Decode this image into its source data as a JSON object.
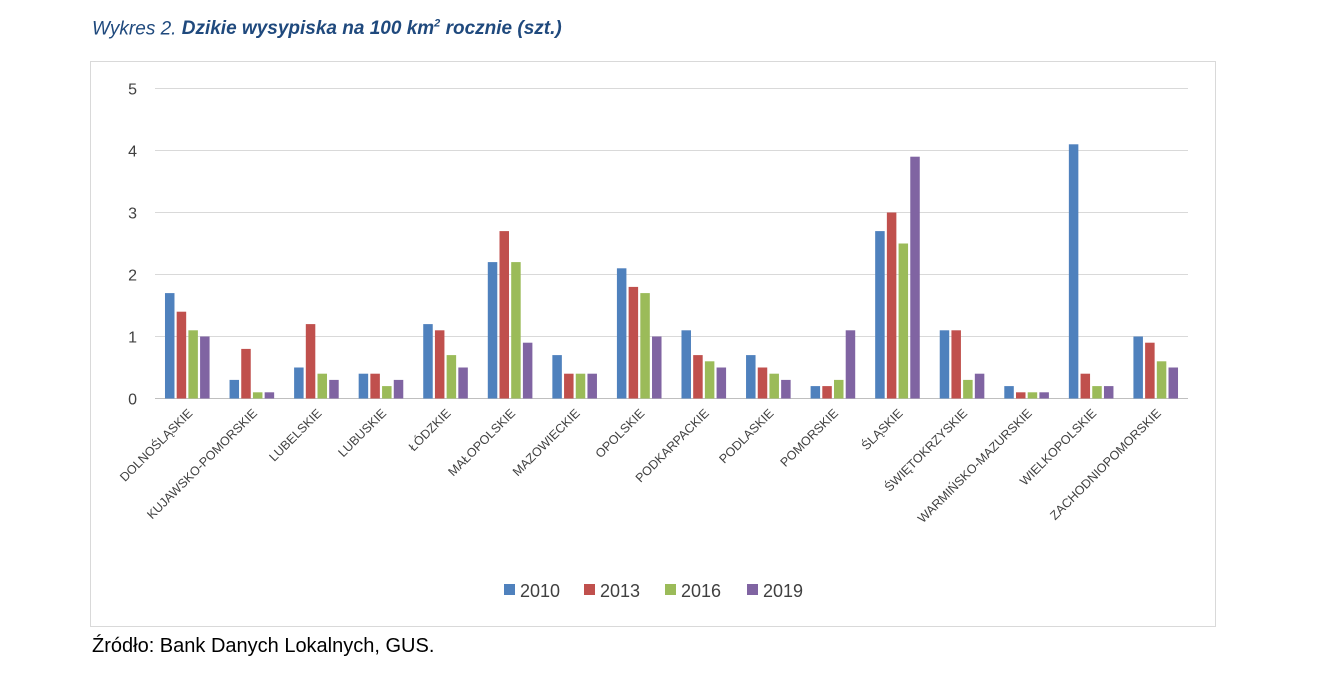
{
  "caption": {
    "prefix": "Wykres 2.",
    "title": "Dzikie wysypiska na 100 km",
    "superscript": "2",
    "suffix": " rocznie (szt.)"
  },
  "source": "Źródło: Bank Danych Lokalnych, GUS.",
  "chart_data": {
    "type": "bar",
    "title": "",
    "xlabel": "",
    "ylabel": "",
    "ylim": [
      0,
      5
    ],
    "yticks": [
      0,
      1,
      2,
      3,
      4,
      5
    ],
    "grid": true,
    "legend": "bottom",
    "categories": [
      "DOLNOŚLĄSKIE",
      "KUJAWSKO-POMORSKIE",
      "LUBELSKIE",
      "LUBUSKIE",
      "ŁÓDZKIE",
      "MAŁOPOLSKIE",
      "MAZOWIECKIE",
      "OPOLSKIE",
      "PODKARPACKIE",
      "PODLASKIE",
      "POMORSKIE",
      "ŚLĄSKIE",
      "ŚWIĘTOKRZYSKIE",
      "WARMIŃSKO-MAZURSKIE",
      "WIELKOPOLSKIE",
      "ZACHODNIOPOMORSKIE"
    ],
    "series": [
      {
        "name": "2010",
        "color": "#4f81bd",
        "values": [
          1.7,
          0.3,
          0.5,
          0.4,
          1.2,
          2.2,
          0.7,
          2.1,
          1.1,
          0.7,
          0.2,
          2.7,
          1.1,
          0.2,
          4.1,
          1.0
        ]
      },
      {
        "name": "2013",
        "color": "#c0504d",
        "values": [
          1.4,
          0.8,
          1.2,
          0.4,
          1.1,
          2.7,
          0.4,
          1.8,
          0.7,
          0.5,
          0.2,
          3.0,
          1.1,
          0.1,
          0.4,
          0.9
        ]
      },
      {
        "name": "2016",
        "color": "#9bbb59",
        "values": [
          1.1,
          0.1,
          0.4,
          0.2,
          0.7,
          2.2,
          0.4,
          1.7,
          0.6,
          0.4,
          0.3,
          2.5,
          0.3,
          0.1,
          0.2,
          0.6
        ]
      },
      {
        "name": "2019",
        "color": "#8064a2",
        "values": [
          1.0,
          0.1,
          0.3,
          0.3,
          0.5,
          0.9,
          0.4,
          1.0,
          0.5,
          0.3,
          1.1,
          3.9,
          0.4,
          0.1,
          0.2,
          0.5
        ]
      }
    ]
  }
}
